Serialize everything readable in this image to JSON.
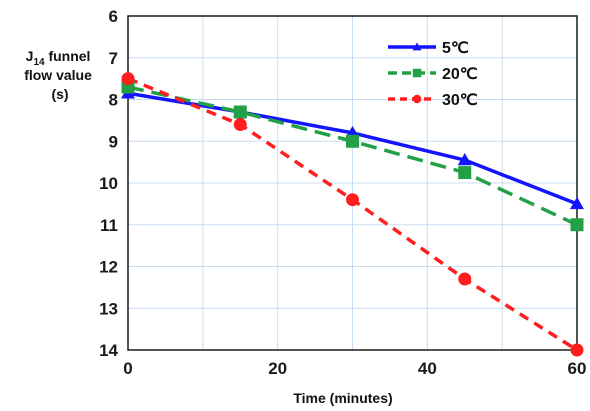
{
  "chart_data": {
    "type": "line",
    "ylabel": {
      "prefix": "J",
      "subscript": "14",
      "line1_rest": " funnel",
      "line2": "flow value",
      "line3": "(s)"
    },
    "xlabel": "Time (minutes)",
    "x": [
      0,
      15,
      30,
      45,
      60
    ],
    "xlim": [
      0,
      60
    ],
    "ylim": [
      6,
      14
    ],
    "y_inverted": true,
    "x_ticks": [
      0,
      20,
      40,
      60
    ],
    "y_ticks": [
      6,
      7,
      8,
      9,
      10,
      11,
      12,
      13,
      14
    ],
    "grid": true,
    "legend_position": "top-right",
    "series": [
      {
        "name": "5℃",
        "values": [
          7.85,
          8.3,
          8.8,
          9.45,
          10.5
        ],
        "color": "#1414ff",
        "line_style": "solid",
        "marker": "triangle"
      },
      {
        "name": "20℃",
        "values": [
          7.7,
          8.3,
          9.0,
          9.75,
          11.0
        ],
        "color": "#22a045",
        "line_style": "dashed",
        "marker": "square"
      },
      {
        "name": "30℃",
        "values": [
          7.5,
          8.6,
          10.4,
          12.3,
          14.0
        ],
        "color": "#ff1e1e",
        "line_style": "dashed",
        "marker": "circle"
      }
    ]
  }
}
